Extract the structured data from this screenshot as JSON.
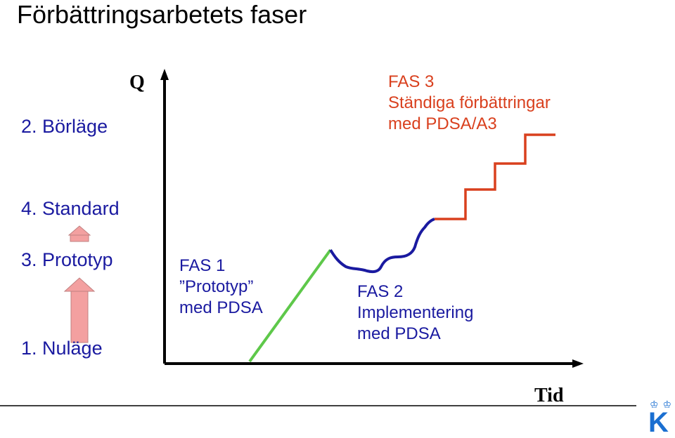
{
  "title": "Förbättringsarbetets faser",
  "y_axis_label": "Q",
  "x_axis_label": "Tid",
  "levels": {
    "borlage": "2. Börläge",
    "standard": "4. Standard",
    "prototyp": "3. Prototyp",
    "nulage": "1. Nuläge"
  },
  "phases": {
    "fas1": {
      "line1": "FAS 1",
      "line2": "”Prototyp”",
      "line3": "med PDSA"
    },
    "fas2": {
      "line1": "FAS 2",
      "line2": "Implementering",
      "line3": "med PDSA"
    },
    "fas3": {
      "line1": "FAS 3",
      "line2": "Ständiga förbättringar",
      "line3": "med PDSA/A3"
    }
  },
  "logo": {
    "letter": "K"
  },
  "colors": {
    "navy": "#1a1aa0",
    "orange": "#d9401e",
    "green": "#5ec84a",
    "arrow_pink": "#f3a0a0"
  }
}
